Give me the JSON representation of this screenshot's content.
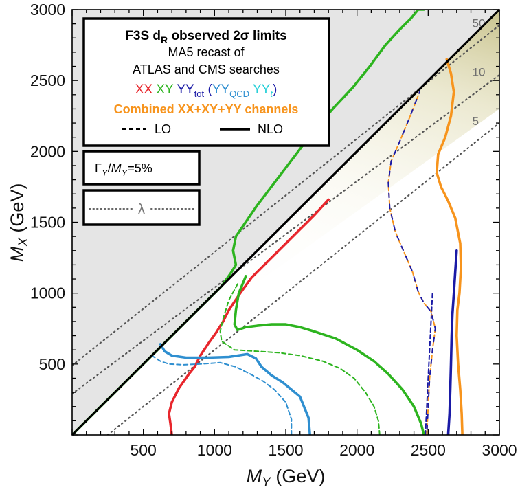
{
  "chart_data": {
    "type": "line",
    "xlabel": {
      "var": "M",
      "sub": "Y",
      "unit": "(GeV)"
    },
    "ylabel": {
      "var": "M",
      "sub": "X",
      "unit": "(GeV)"
    },
    "xlim": [
      0,
      3000
    ],
    "ylim": [
      0,
      3000
    ],
    "x_ticks": [
      "500",
      "1000",
      "1500",
      "2000",
      "2500",
      "3000"
    ],
    "y_ticks": [
      "500",
      "1000",
      "1500",
      "2000",
      "2500",
      "3000"
    ],
    "grid": false,
    "legend": {
      "title_main": "F3S d",
      "title_sub": "R",
      "title_rest": " observed 2σ limits",
      "line2": "MA5 recast of",
      "line3": "ATLAS and CMS searches",
      "xx": "XX",
      "xy": "XY",
      "yy_main": "YY",
      "yy_sub": "tot",
      "paren_open": "(",
      "yyqcd_main": "YY",
      "yyqcd_sub": "QCD",
      "yyt_main": "YY",
      "yyt_sub": "t",
      "paren_close": ")",
      "combined": "Combined XX+XY+YY channels",
      "lo": "LO",
      "nlo": "NLO"
    },
    "width_box": {
      "gamma": "Γ",
      "sub1": "Y",
      "slash": "/",
      "m": "M",
      "sub2": "Y",
      "rest": "=5%"
    },
    "lambda_box": {
      "symbol": "λ"
    },
    "lambda_contours": [
      {
        "label": "5",
        "slope": 0.8,
        "intercept": -200
      },
      {
        "label": "10",
        "slope": 0.75,
        "intercept": 290
      },
      {
        "label": "50",
        "slope": 0.8,
        "intercept": 490
      }
    ],
    "colors": {
      "XX": "#e8262c",
      "XY": "#2db41f",
      "YYtot": "#1a1aa6",
      "YYQCD": "#2f8fd0",
      "YYt": "#29d0d8",
      "Combined": "#f7941d",
      "excluded": "#e5e5e5"
    },
    "series": [
      {
        "name": "XX",
        "order": "NLO",
        "x": [
          700,
          690,
          680,
          700,
          750,
          820,
          860,
          900,
          960,
          1010,
          1060,
          1100,
          1180,
          1260,
          1340,
          1450,
          1600,
          1700,
          1800
        ],
        "y": [
          0,
          80,
          150,
          230,
          330,
          430,
          480,
          560,
          650,
          720,
          800,
          880,
          1000,
          1110,
          1190,
          1300,
          1450,
          1550,
          1660
        ]
      },
      {
        "name": "XX",
        "order": "LO",
        "x": [
          0,
          100,
          200,
          300,
          400,
          500,
          600,
          700,
          800
        ],
        "y": [
          0,
          100,
          200,
          300,
          400,
          500,
          600,
          700,
          800
        ]
      },
      {
        "name": "XY",
        "order": "NLO",
        "x": [
          0,
          200,
          400,
          600,
          800,
          1000,
          1050,
          1120,
          1150,
          1130,
          1150,
          1300,
          1550,
          1700,
          1830,
          1970,
          2090,
          2200,
          2300,
          2380,
          2430,
          2460,
          2470
        ],
        "y": [
          0,
          200,
          400,
          600,
          800,
          1000,
          1050,
          1150,
          1200,
          1300,
          1400,
          1620,
          1950,
          2150,
          2300,
          2450,
          2600,
          2750,
          2860,
          2940,
          3000,
          3000,
          3000
        ],
        "dir": "upper"
      },
      {
        "name": "XY",
        "order": "NLO",
        "x": [
          2470,
          2450,
          2400,
          2320,
          2220,
          2120,
          2000,
          1850,
          1700,
          1600,
          1500,
          1400,
          1300,
          1220,
          1160,
          1140,
          1150,
          1170,
          1220
        ],
        "y": [
          0,
          80,
          200,
          320,
          430,
          520,
          600,
          680,
          730,
          760,
          780,
          780,
          770,
          760,
          740,
          780,
          880,
          1000,
          1120
        ]
      },
      {
        "name": "XY",
        "order": "LO",
        "x": [
          2160,
          2150,
          2120,
          2060,
          1980,
          1880,
          1760,
          1600,
          1450,
          1300,
          1140,
          1050,
          1040,
          1060,
          1100,
          1170
        ],
        "y": [
          0,
          100,
          200,
          300,
          400,
          470,
          520,
          560,
          580,
          590,
          600,
          660,
          730,
          820,
          950,
          1080
        ]
      },
      {
        "name": "YYQCD",
        "order": "NLO",
        "x": [
          1670,
          1660,
          1600,
          1480,
          1400,
          1330,
          1290,
          1230,
          1100,
          950,
          800,
          700,
          650,
          620
        ],
        "y": [
          0,
          120,
          270,
          370,
          420,
          480,
          540,
          570,
          550,
          545,
          545,
          560,
          590,
          640
        ]
      },
      {
        "name": "YYQCD",
        "order": "LO",
        "x": [
          1540,
          1540,
          1500,
          1420,
          1340,
          1250,
          1150,
          1040,
          900,
          780,
          680,
          620,
          560
        ],
        "y": [
          0,
          110,
          230,
          320,
          380,
          430,
          480,
          510,
          500,
          495,
          500,
          520,
          560
        ]
      },
      {
        "name": "YYtot",
        "order": "NLO",
        "x": [
          2640,
          2650,
          2655,
          2660,
          2665,
          2670,
          2680,
          2690,
          2700
        ],
        "y": [
          0,
          150,
          320,
          500,
          700,
          850,
          1000,
          1150,
          1300
        ]
      },
      {
        "name": "YYtot",
        "order": "LO",
        "x": [
          2480,
          2490,
          2500,
          2510,
          2520,
          2530
        ],
        "y": [
          0,
          200,
          400,
          600,
          800,
          1000
        ]
      },
      {
        "name": "Combined",
        "order": "NLO",
        "x": [
          2740,
          2735,
          2725,
          2710,
          2700,
          2705,
          2720,
          2730,
          2725,
          2690,
          2640,
          2590,
          2560,
          2570,
          2620,
          2660,
          2680,
          2660,
          2630
        ],
        "y": [
          0,
          150,
          320,
          500,
          700,
          880,
          1000,
          1180,
          1350,
          1530,
          1650,
          1750,
          1850,
          1980,
          2100,
          2250,
          2420,
          2550,
          2650
        ]
      },
      {
        "name": "Combined",
        "order": "LO",
        "x": [
          2490,
          2500,
          2510,
          2530,
          2550,
          2520,
          2470,
          2430,
          2390,
          2330,
          2270,
          2230,
          2220,
          2240,
          2300,
          2370,
          2440
        ],
        "y": [
          0,
          200,
          400,
          600,
          750,
          870,
          930,
          1010,
          1150,
          1290,
          1430,
          1600,
          1780,
          1930,
          2070,
          2240,
          2420
        ]
      }
    ]
  }
}
